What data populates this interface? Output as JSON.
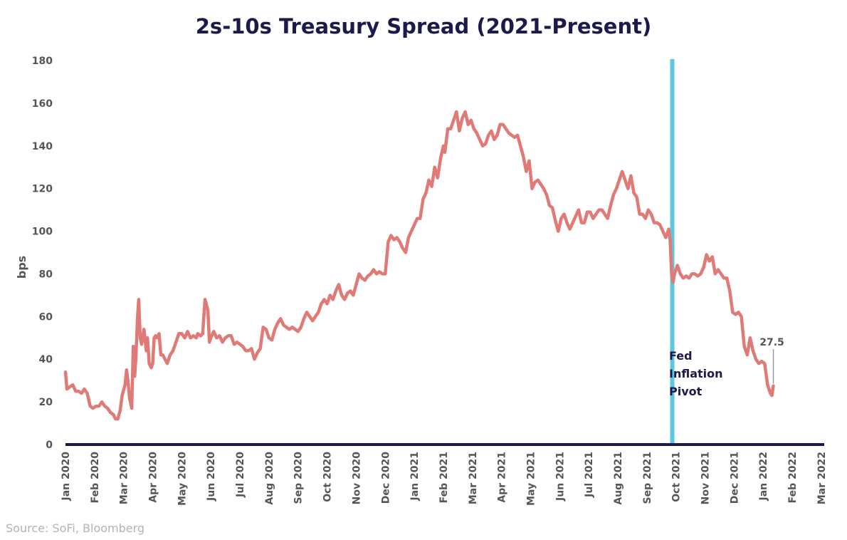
{
  "chart_data": {
    "type": "line",
    "title": "2s-10s Treasury Spread (2021-Present)",
    "ylabel": "bps",
    "xlabel": "",
    "ylim": [
      0,
      180
    ],
    "y_ticks": [
      0,
      20,
      40,
      60,
      80,
      100,
      120,
      140,
      160,
      180
    ],
    "x_tick_labels": [
      "Jan 2020",
      "Feb 2020",
      "Mar 2020",
      "Apr 2020",
      "May 2020",
      "Jun 2020",
      "Jul 2020",
      "Aug 2020",
      "Sep 2020",
      "Oct 2020",
      "Nov 2020",
      "Dec 2020",
      "Jan 2021",
      "Feb 2021",
      "Mar 2021",
      "Apr 2021",
      "May 2021",
      "Jun 2021",
      "Jul 2021",
      "Aug 2021",
      "Sep 2021",
      "Oct 2021",
      "Nov 2021",
      "Dec 2021",
      "Jan 2022",
      "Feb 2022",
      "Mar 2022"
    ],
    "grid": false,
    "legend": "none",
    "series": [
      {
        "color": "#e07a76",
        "x_month_start": "2020-01",
        "points": [
          [
            0,
            34
          ],
          [
            0.05,
            26
          ],
          [
            0.15,
            27
          ],
          [
            0.25,
            28
          ],
          [
            0.35,
            25
          ],
          [
            0.45,
            25
          ],
          [
            0.55,
            24
          ],
          [
            0.65,
            26
          ],
          [
            0.75,
            24
          ],
          [
            0.85,
            18
          ],
          [
            0.95,
            17
          ],
          [
            1.05,
            18
          ],
          [
            1.15,
            18
          ],
          [
            1.25,
            20
          ],
          [
            1.35,
            18
          ],
          [
            1.45,
            17
          ],
          [
            1.55,
            15
          ],
          [
            1.65,
            14
          ],
          [
            1.72,
            12
          ],
          [
            1.8,
            12
          ],
          [
            1.88,
            16
          ],
          [
            1.95,
            23
          ],
          [
            2.05,
            28
          ],
          [
            2.1,
            35
          ],
          [
            2.15,
            30
          ],
          [
            2.2,
            22
          ],
          [
            2.28,
            17
          ],
          [
            2.33,
            46
          ],
          [
            2.38,
            32
          ],
          [
            2.42,
            40
          ],
          [
            2.48,
            60
          ],
          [
            2.52,
            68
          ],
          [
            2.57,
            50
          ],
          [
            2.62,
            47
          ],
          [
            2.7,
            54
          ],
          [
            2.78,
            44
          ],
          [
            2.82,
            50
          ],
          [
            2.88,
            38
          ],
          [
            2.95,
            36
          ],
          [
            3.0,
            38
          ],
          [
            3.05,
            50
          ],
          [
            3.1,
            51
          ],
          [
            3.15,
            50
          ],
          [
            3.22,
            52
          ],
          [
            3.28,
            42
          ],
          [
            3.35,
            42
          ],
          [
            3.42,
            40
          ],
          [
            3.5,
            38
          ],
          [
            3.6,
            42
          ],
          [
            3.7,
            44
          ],
          [
            3.8,
            48
          ],
          [
            3.9,
            52
          ],
          [
            4.0,
            52
          ],
          [
            4.1,
            50
          ],
          [
            4.2,
            53
          ],
          [
            4.3,
            50
          ],
          [
            4.4,
            51
          ],
          [
            4.5,
            50
          ],
          [
            4.55,
            52
          ],
          [
            4.65,
            51
          ],
          [
            4.72,
            52
          ],
          [
            4.8,
            68
          ],
          [
            4.9,
            63
          ],
          [
            4.95,
            48
          ],
          [
            5.0,
            50
          ],
          [
            5.1,
            53
          ],
          [
            5.2,
            50
          ],
          [
            5.3,
            51
          ],
          [
            5.4,
            48
          ],
          [
            5.5,
            50
          ],
          [
            5.6,
            51
          ],
          [
            5.7,
            51
          ],
          [
            5.8,
            47
          ],
          [
            5.9,
            48
          ],
          [
            6.0,
            47
          ],
          [
            6.1,
            46
          ],
          [
            6.2,
            44
          ],
          [
            6.3,
            44
          ],
          [
            6.4,
            45
          ],
          [
            6.5,
            40
          ],
          [
            6.6,
            43
          ],
          [
            6.7,
            45
          ],
          [
            6.8,
            55
          ],
          [
            6.9,
            54
          ],
          [
            7.0,
            50
          ],
          [
            7.1,
            49
          ],
          [
            7.2,
            54
          ],
          [
            7.3,
            57
          ],
          [
            7.4,
            59
          ],
          [
            7.5,
            56
          ],
          [
            7.6,
            55
          ],
          [
            7.7,
            54
          ],
          [
            7.8,
            55
          ],
          [
            7.9,
            54
          ],
          [
            8.0,
            53
          ],
          [
            8.1,
            55
          ],
          [
            8.2,
            59
          ],
          [
            8.3,
            62
          ],
          [
            8.4,
            60
          ],
          [
            8.5,
            58
          ],
          [
            8.6,
            60
          ],
          [
            8.7,
            62
          ],
          [
            8.8,
            66
          ],
          [
            8.9,
            68
          ],
          [
            9.0,
            66
          ],
          [
            9.1,
            70
          ],
          [
            9.2,
            68
          ],
          [
            9.3,
            72
          ],
          [
            9.4,
            75
          ],
          [
            9.5,
            70
          ],
          [
            9.6,
            68
          ],
          [
            9.7,
            71
          ],
          [
            9.8,
            72
          ],
          [
            9.9,
            70
          ],
          [
            10.0,
            75
          ],
          [
            10.1,
            80
          ],
          [
            10.2,
            78
          ],
          [
            10.3,
            77
          ],
          [
            10.4,
            79
          ],
          [
            10.5,
            80
          ],
          [
            10.6,
            82
          ],
          [
            10.7,
            80
          ],
          [
            10.8,
            81
          ],
          [
            10.9,
            80
          ],
          [
            11.0,
            80
          ],
          [
            11.1,
            95
          ],
          [
            11.2,
            98
          ],
          [
            11.3,
            96
          ],
          [
            11.4,
            97
          ],
          [
            11.5,
            95
          ],
          [
            11.6,
            92
          ],
          [
            11.7,
            90
          ],
          [
            11.8,
            97
          ],
          [
            11.9,
            100
          ],
          [
            12.0,
            103
          ],
          [
            12.1,
            106
          ],
          [
            12.2,
            106
          ],
          [
            12.3,
            115
          ],
          [
            12.4,
            118
          ],
          [
            12.5,
            124
          ],
          [
            12.6,
            121
          ],
          [
            12.7,
            130
          ],
          [
            12.8,
            125
          ],
          [
            12.9,
            134
          ],
          [
            13.0,
            140
          ],
          [
            13.05,
            137
          ],
          [
            13.15,
            148
          ],
          [
            13.25,
            148
          ],
          [
            13.35,
            152
          ],
          [
            13.45,
            156
          ],
          [
            13.55,
            147
          ],
          [
            13.65,
            153
          ],
          [
            13.75,
            156
          ],
          [
            13.85,
            150
          ],
          [
            13.95,
            152
          ],
          [
            14.05,
            148
          ],
          [
            14.15,
            146
          ],
          [
            14.25,
            143
          ],
          [
            14.35,
            140
          ],
          [
            14.45,
            141
          ],
          [
            14.55,
            145
          ],
          [
            14.65,
            147
          ],
          [
            14.75,
            143
          ],
          [
            14.85,
            145
          ],
          [
            14.95,
            150
          ],
          [
            15.05,
            150
          ],
          [
            15.15,
            148
          ],
          [
            15.25,
            146
          ],
          [
            15.35,
            145
          ],
          [
            15.45,
            144
          ],
          [
            15.55,
            145
          ],
          [
            15.65,
            140
          ],
          [
            15.75,
            135
          ],
          [
            15.85,
            128
          ],
          [
            15.95,
            133
          ],
          [
            16.05,
            120
          ],
          [
            16.15,
            123
          ],
          [
            16.25,
            124
          ],
          [
            16.35,
            122
          ],
          [
            16.45,
            120
          ],
          [
            16.55,
            117
          ],
          [
            16.65,
            112
          ],
          [
            16.75,
            111
          ],
          [
            16.85,
            105
          ],
          [
            16.95,
            100
          ],
          [
            17.05,
            106
          ],
          [
            17.15,
            108
          ],
          [
            17.25,
            104
          ],
          [
            17.35,
            101
          ],
          [
            17.45,
            104
          ],
          [
            17.55,
            107
          ],
          [
            17.65,
            110
          ],
          [
            17.75,
            104
          ],
          [
            17.85,
            104
          ],
          [
            17.95,
            109
          ],
          [
            18.05,
            109
          ],
          [
            18.15,
            106
          ],
          [
            18.25,
            108
          ],
          [
            18.35,
            110
          ],
          [
            18.45,
            110
          ],
          [
            18.55,
            108
          ],
          [
            18.65,
            106
          ],
          [
            18.75,
            112
          ],
          [
            18.85,
            117
          ],
          [
            18.95,
            120
          ],
          [
            19.05,
            124
          ],
          [
            19.15,
            128
          ],
          [
            19.25,
            124
          ],
          [
            19.35,
            120
          ],
          [
            19.45,
            126
          ],
          [
            19.55,
            118
          ],
          [
            19.65,
            116
          ],
          [
            19.75,
            108
          ],
          [
            19.85,
            108
          ],
          [
            19.95,
            106
          ],
          [
            20.05,
            110
          ],
          [
            20.15,
            108
          ],
          [
            20.25,
            104
          ],
          [
            20.35,
            104
          ],
          [
            20.45,
            103
          ],
          [
            20.55,
            100
          ],
          [
            20.65,
            97
          ],
          [
            20.75,
            101
          ],
          [
            20.8,
            96
          ],
          [
            20.85,
            80
          ],
          [
            20.9,
            76
          ],
          [
            20.95,
            80
          ],
          [
            21.05,
            84
          ],
          [
            21.15,
            80
          ],
          [
            21.25,
            78
          ],
          [
            21.35,
            79
          ],
          [
            21.45,
            78
          ],
          [
            21.55,
            80
          ],
          [
            21.65,
            80
          ],
          [
            21.75,
            79
          ],
          [
            21.85,
            80
          ],
          [
            21.95,
            83
          ],
          [
            22.05,
            89
          ],
          [
            22.15,
            86
          ],
          [
            22.25,
            88
          ],
          [
            22.35,
            80
          ],
          [
            22.45,
            82
          ],
          [
            22.55,
            80
          ],
          [
            22.65,
            78
          ],
          [
            22.75,
            78
          ],
          [
            22.85,
            72
          ],
          [
            22.95,
            62
          ],
          [
            23.05,
            61
          ],
          [
            23.15,
            62
          ],
          [
            23.25,
            60
          ],
          [
            23.35,
            46
          ],
          [
            23.45,
            42
          ],
          [
            23.55,
            50
          ],
          [
            23.65,
            44
          ],
          [
            23.75,
            40
          ],
          [
            23.85,
            38
          ],
          [
            23.95,
            39
          ],
          [
            24.05,
            38
          ],
          [
            24.15,
            28
          ],
          [
            24.25,
            24
          ],
          [
            24.3,
            23
          ],
          [
            24.35,
            27.5
          ]
        ]
      }
    ],
    "annotations": [
      {
        "text": "Fed Inflation Pivot",
        "lines": [
          "Fed",
          "Inflation",
          "Pivot"
        ],
        "x": 20.8,
        "line_color": "#5bc8e0"
      },
      {
        "text": "27.5",
        "x": 24.35,
        "y": 27.5
      }
    ]
  },
  "source": "Source: SoFi, Bloomberg"
}
